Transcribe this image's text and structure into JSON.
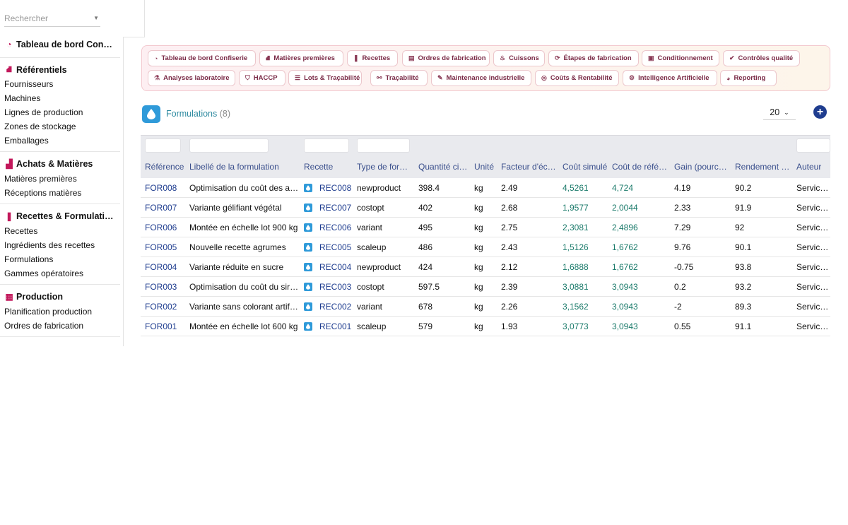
{
  "search": {
    "placeholder": "Rechercher"
  },
  "sidebar": {
    "sections": [
      {
        "title": "Tableau de bord Con…",
        "icon": "gauge-icon",
        "items": []
      },
      {
        "title": "Référentiels",
        "icon": "sitemap-icon",
        "items": [
          "Fournisseurs",
          "Machines",
          "Lignes de production",
          "Zones de stockage",
          "Emballages"
        ]
      },
      {
        "title": "Achats & Matières",
        "icon": "boxes-icon",
        "items": [
          "Matières premières",
          "Réceptions matières"
        ]
      },
      {
        "title": "Recettes & Formulati…",
        "icon": "book-icon",
        "items": [
          "Recettes",
          "Ingrédients des recettes",
          "Formulations",
          "Gammes opératoires"
        ]
      },
      {
        "title": "Production",
        "icon": "calendar-icon",
        "items": [
          "Planification production",
          "Ordres de fabrication"
        ]
      }
    ]
  },
  "nav": {
    "row1": [
      "Tableau de bord Confiserie",
      "Matières premières",
      "Recettes",
      "Ordres de fabrication",
      "Cuissons",
      "Étapes de fabrication",
      "Conditionnement",
      "Contrôles qualité"
    ],
    "row2": [
      "Analyses laboratoire",
      "HACCP",
      "Lots & Traçabilité",
      "Traçabilité",
      "Maintenance industrielle",
      "Coûts & Rentabilité",
      "Intelligence Artificielle",
      "Reporting"
    ],
    "icons1": [
      "gauge-icon",
      "sitemap-icon",
      "book-icon",
      "clipboard-icon",
      "flame-icon",
      "refresh-icon",
      "package-icon",
      "check-circle-icon"
    ],
    "icons2": [
      "flask-icon",
      "shield-icon",
      "list-icon",
      "network-icon",
      "wrench-icon",
      "coins-icon",
      "robot-icon",
      "pie-chart-icon"
    ]
  },
  "list": {
    "title": "Formulations",
    "count": "(8)",
    "page_size": "20"
  },
  "table": {
    "columns": [
      "Référence",
      "Libellé de la formulation",
      "Recette",
      "Type de for…",
      "Quantité cible",
      "Unité",
      "Facteur d'éc…",
      "Coût simulé",
      "Coût de réfé…",
      "Gain (pource…",
      "Rendement (…",
      "Auteur"
    ],
    "rows": [
      [
        "FOR008",
        "Optimisation du coût des ar…",
        "REC008",
        "newproduct",
        "398.4",
        "kg",
        "2.49",
        "4,5261",
        "4,724",
        "4.19",
        "90.2",
        "Service R"
      ],
      [
        "FOR007",
        "Variante gélifiant végétal",
        "REC007",
        "costopt",
        "402",
        "kg",
        "2.68",
        "1,9577",
        "2,0044",
        "2.33",
        "91.9",
        "Service R"
      ],
      [
        "FOR006",
        "Montée en échelle lot 900 kg",
        "REC006",
        "variant",
        "495",
        "kg",
        "2.75",
        "2,3081",
        "2,4896",
        "7.29",
        "92",
        "Service R"
      ],
      [
        "FOR005",
        "Nouvelle recette agrumes",
        "REC005",
        "scaleup",
        "486",
        "kg",
        "2.43",
        "1,5126",
        "1,6762",
        "9.76",
        "90.1",
        "Service R"
      ],
      [
        "FOR004",
        "Variante réduite en sucre",
        "REC004",
        "newproduct",
        "424",
        "kg",
        "2.12",
        "1,6888",
        "1,6762",
        "-0.75",
        "93.8",
        "Service R"
      ],
      [
        "FOR003",
        "Optimisation du coût du siro…",
        "REC003",
        "costopt",
        "597.5",
        "kg",
        "2.39",
        "3,0881",
        "3,0943",
        "0.2",
        "93.2",
        "Service R"
      ],
      [
        "FOR002",
        "Variante sans colorant artificiel",
        "REC002",
        "variant",
        "678",
        "kg",
        "2.26",
        "3,1562",
        "3,0943",
        "-2",
        "89.3",
        "Service R"
      ],
      [
        "FOR001",
        "Montée en échelle lot 600 kg",
        "REC001",
        "scaleup",
        "579",
        "kg",
        "1.93",
        "3,0773",
        "3,0943",
        "0.55",
        "91.1",
        "Service R"
      ]
    ]
  },
  "colors": {
    "accent": "#c2185b",
    "link": "#1f3d8f",
    "money": "#1a7a6a",
    "badge": "#2f9ad9"
  }
}
